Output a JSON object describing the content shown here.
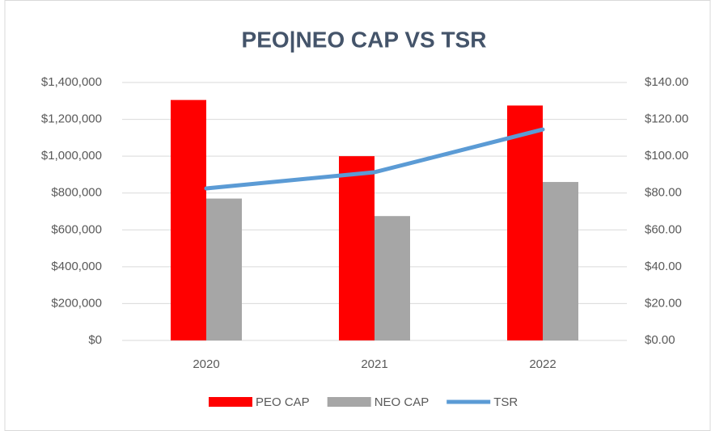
{
  "chart_data": {
    "type": "bar-line",
    "title": "PEO|NEO CAP VS TSR",
    "categories": [
      "2020",
      "2021",
      "2022"
    ],
    "series": [
      {
        "name": "PEO CAP",
        "type": "bar",
        "color": "#ff0000",
        "values": [
          1305000,
          1000000,
          1275000
        ]
      },
      {
        "name": "NEO CAP",
        "type": "bar",
        "color": "#a6a6a6",
        "values": [
          770000,
          675000,
          860000
        ]
      },
      {
        "name": "TSR",
        "type": "line",
        "axis": "y2",
        "color": "#5b9bd5",
        "values": [
          82.5,
          91.3,
          114.5
        ]
      }
    ],
    "ylim": [
      0,
      1400000
    ],
    "yticks": [
      {
        "value": 0,
        "label": "$0"
      },
      {
        "value": 200000,
        "label": "$200,000"
      },
      {
        "value": 400000,
        "label": "$400,000"
      },
      {
        "value": 600000,
        "label": "$600,000"
      },
      {
        "value": 800000,
        "label": "$800,000"
      },
      {
        "value": 1000000,
        "label": "$1,000,000"
      },
      {
        "value": 1200000,
        "label": "$1,200,000"
      },
      {
        "value": 1400000,
        "label": "$1,400,000"
      }
    ],
    "y2lim": [
      0,
      140
    ],
    "y2ticks": [
      {
        "value": 0,
        "label": "$0.00"
      },
      {
        "value": 20,
        "label": "$20.00"
      },
      {
        "value": 40,
        "label": "$40.00"
      },
      {
        "value": 60,
        "label": "$60.00"
      },
      {
        "value": 80,
        "label": "$80.00"
      },
      {
        "value": 100,
        "label": "$100.00"
      },
      {
        "value": 120,
        "label": "$120.00"
      },
      {
        "value": 140,
        "label": "$140.00"
      }
    ],
    "grid": true,
    "legend": "bottom"
  }
}
